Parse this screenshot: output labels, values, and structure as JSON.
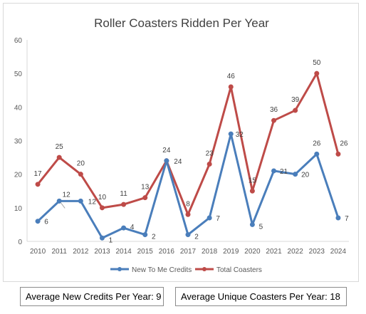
{
  "chart_data": {
    "type": "line",
    "title": "Roller Coasters Ridden Per Year",
    "xlabel": "",
    "ylabel": "",
    "categories": [
      "2010",
      "2011",
      "2012",
      "2013",
      "2014",
      "2015",
      "2016",
      "2017",
      "2018",
      "2019",
      "2020",
      "2021",
      "2022",
      "2023",
      "2024"
    ],
    "ylim": [
      0,
      60
    ],
    "yticks": [
      0,
      10,
      20,
      30,
      40,
      50,
      60
    ],
    "grid": false,
    "legend_position": "bottom",
    "data_labels": true,
    "series": [
      {
        "name": "New To Me Credits",
        "color": "#4a7ebb",
        "values": [
          6,
          12,
          12,
          1,
          4,
          2,
          24,
          2,
          7,
          32,
          5,
          21,
          20,
          26,
          7
        ]
      },
      {
        "name": "Total Coasters",
        "color": "#be4b48",
        "values": [
          17,
          25,
          20,
          10,
          11,
          13,
          24,
          8,
          23,
          46,
          15,
          36,
          39,
          50,
          26
        ]
      }
    ]
  },
  "summary": {
    "credits_text": "Average New Credits Per Year: 9",
    "coasters_text": "Average Unique Coasters Per Year: 18"
  }
}
